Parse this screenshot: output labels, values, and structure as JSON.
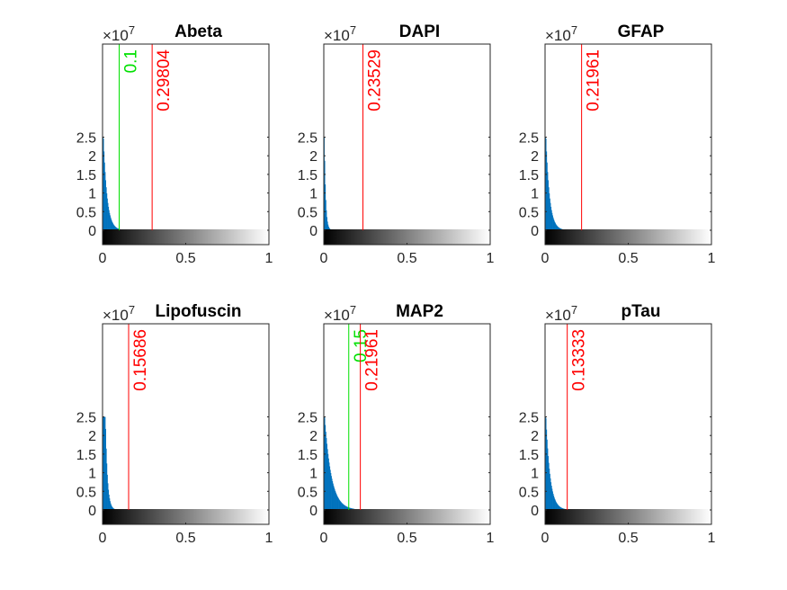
{
  "colors": {
    "histogram": "#0072BD",
    "auto_threshold": "#FF0000",
    "manual_threshold": "#00E000",
    "axis": "#262626"
  },
  "chart_data": [
    {
      "type": "bar",
      "title": "Abeta",
      "ylim": [
        -0.2,
        2.5
      ],
      "xlim": [
        0,
        1
      ],
      "y_exponent": "×10",
      "y_exponent_power": "7",
      "x_ticks": [
        "0",
        "0.5",
        "1"
      ],
      "y_ticks": [
        "0",
        "0.5",
        "1",
        "1.5",
        "2",
        "2.5"
      ],
      "colorbar": "gray",
      "histogram": {
        "peak": 2.5,
        "peak_x": 0.003,
        "decay": 0.022,
        "tail_end": 0.12
      },
      "thresholds": [
        {
          "value": 0.1,
          "label": "0.1",
          "color": "manual"
        },
        {
          "value": 0.29804,
          "label": "0.29804",
          "color": "auto"
        }
      ]
    },
    {
      "type": "bar",
      "title": "DAPI",
      "ylim": [
        -0.2,
        2.5
      ],
      "xlim": [
        0,
        1
      ],
      "y_exponent": "×10",
      "y_exponent_power": "7",
      "x_ticks": [
        "0",
        "0.5",
        "1"
      ],
      "y_ticks": [
        "0",
        "0.5",
        "1",
        "1.5",
        "2",
        "2.5"
      ],
      "colorbar": "gray",
      "histogram": {
        "peak": 2.5,
        "peak_x": 0.001,
        "decay": 0.008,
        "tail_end": 0.05
      },
      "thresholds": [
        {
          "value": 0.23529,
          "label": "0.23529",
          "color": "auto"
        }
      ]
    },
    {
      "type": "bar",
      "title": "GFAP",
      "ylim": [
        -0.2,
        2.5
      ],
      "xlim": [
        0,
        1
      ],
      "y_exponent": "×10",
      "y_exponent_power": "7",
      "x_ticks": [
        "0",
        "0.5",
        "1"
      ],
      "y_ticks": [
        "0",
        "0.5",
        "1",
        "1.5",
        "2",
        "2.5"
      ],
      "colorbar": "gray",
      "histogram": {
        "peak": 2.5,
        "peak_x": 0.003,
        "decay": 0.022,
        "tail_end": 0.13
      },
      "thresholds": [
        {
          "value": 0.21961,
          "label": "0.21961",
          "color": "auto"
        }
      ]
    },
    {
      "type": "bar",
      "title": "Lipofuscin",
      "ylim": [
        -0.2,
        2.5
      ],
      "xlim": [
        0,
        1
      ],
      "y_exponent": "×10",
      "y_exponent_power": "7",
      "x_ticks": [
        "0",
        "0.5",
        "1"
      ],
      "y_ticks": [
        "0",
        "0.5",
        "1",
        "1.5",
        "2",
        "2.5"
      ],
      "colorbar": "gray",
      "histogram": {
        "peak": 2.5,
        "peak_x": 0.015,
        "decay": 0.012,
        "tail_end": 0.08
      },
      "thresholds": [
        {
          "value": 0.15686,
          "label": "0.15686",
          "color": "auto"
        }
      ]
    },
    {
      "type": "bar",
      "title": "MAP2",
      "ylim": [
        -0.2,
        2.5
      ],
      "xlim": [
        0,
        1
      ],
      "y_exponent": "×10",
      "y_exponent_power": "7",
      "x_ticks": [
        "0",
        "0.5",
        "1"
      ],
      "y_ticks": [
        "0",
        "0.5",
        "1",
        "1.5",
        "2",
        "2.5"
      ],
      "colorbar": "gray",
      "histogram": {
        "peak": 2.5,
        "peak_x": 0.003,
        "decay": 0.04,
        "tail_end": 0.18
      },
      "thresholds": [
        {
          "value": 0.15,
          "label": "0.15",
          "color": "manual"
        },
        {
          "value": 0.21961,
          "label": "0.21961",
          "color": "auto"
        }
      ]
    },
    {
      "type": "bar",
      "title": "pTau",
      "ylim": [
        -0.2,
        2.5
      ],
      "xlim": [
        0,
        1
      ],
      "y_exponent": "×10",
      "y_exponent_power": "7",
      "x_ticks": [
        "0",
        "0.5",
        "1"
      ],
      "y_ticks": [
        "0",
        "0.5",
        "1",
        "1.5",
        "2",
        "2.5"
      ],
      "colorbar": "gray",
      "histogram": {
        "peak": 2.5,
        "peak_x": 0.003,
        "decay": 0.025,
        "tail_end": 0.12
      },
      "thresholds": [
        {
          "value": 0.13333,
          "label": "0.13333",
          "color": "auto"
        }
      ]
    }
  ]
}
